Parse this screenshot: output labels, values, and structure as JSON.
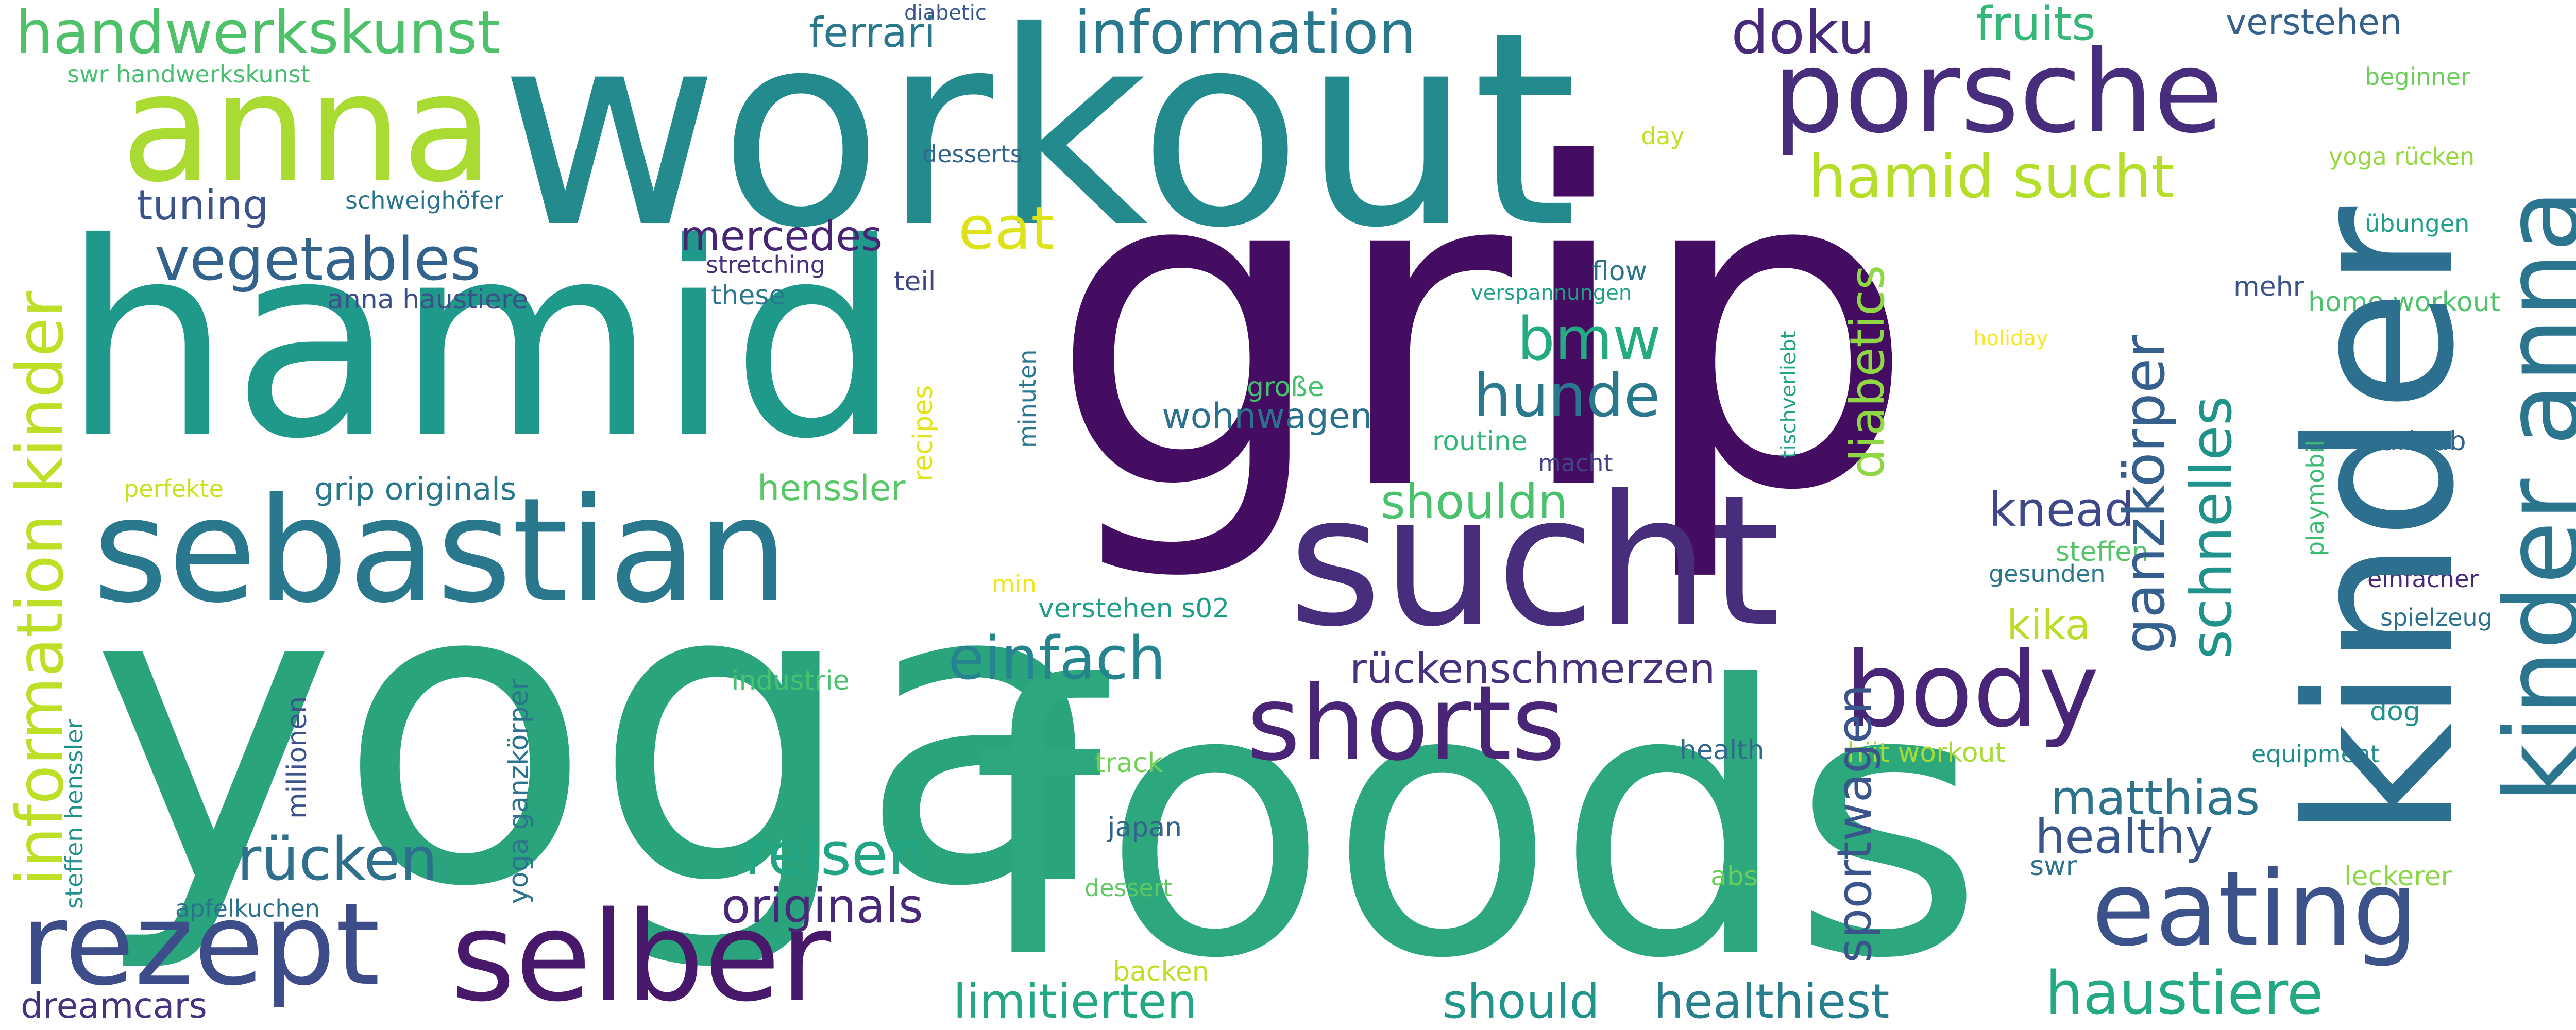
{
  "words": [
    {
      "text": "grip",
      "color": "#440d62"
    },
    {
      "text": "yoga",
      "color": "#2aa47d"
    },
    {
      "text": "foods",
      "color": "#2ca87c"
    },
    {
      "text": "workout",
      "color": "#238b8d"
    },
    {
      "text": "hamid",
      "color": "#1f9a8a"
    },
    {
      "text": "kinder",
      "color": "#2c6f8e"
    },
    {
      "text": "sucht",
      "color": "#472d7b"
    },
    {
      "text": "anna",
      "color": "#a9db33"
    },
    {
      "text": "sebastian",
      "color": "#2a788e"
    },
    {
      "text": "porsche",
      "color": "#472d7b"
    },
    {
      "text": "selber",
      "color": "#48196b"
    },
    {
      "text": "rezept",
      "color": "#3d4d8a"
    },
    {
      "text": "kinder anna",
      "color": "#2b758e"
    },
    {
      "text": "shorts",
      "color": "#482576"
    },
    {
      "text": "eating",
      "color": "#3b528b"
    },
    {
      "text": "body",
      "color": "#482576"
    },
    {
      "text": "handwerkskunst",
      "color": "#4fc16b"
    },
    {
      "text": "information",
      "color": "#29788e"
    },
    {
      "text": "hamid sucht",
      "color": "#b5de2b"
    },
    {
      "text": "vegetables",
      "color": "#33638d"
    },
    {
      "text": "reisen",
      "color": "#21a585"
    },
    {
      "text": "einfach",
      "color": "#25848e"
    },
    {
      "text": "rücken",
      "color": "#2e6f8e"
    },
    {
      "text": "originals",
      "color": "#482878"
    },
    {
      "text": "hunde",
      "color": "#2a788e"
    },
    {
      "text": "information kinder",
      "color": "#bddf26"
    },
    {
      "text": "eat",
      "color": "#dde318"
    },
    {
      "text": "bmw",
      "color": "#25ab82"
    },
    {
      "text": "haustiere",
      "color": "#23a983"
    },
    {
      "text": "doku",
      "color": "#472a7a"
    },
    {
      "text": "limitierten",
      "color": "#22a884"
    },
    {
      "text": "healthiest",
      "color": "#277f8e"
    },
    {
      "text": "should",
      "color": "#1f958b"
    },
    {
      "text": "schnelles",
      "color": "#20928c"
    },
    {
      "text": "ganzkörper",
      "color": "#355f8d"
    },
    {
      "text": "sportwagen",
      "color": "#3a548c"
    },
    {
      "text": "fruits",
      "color": "#35b779"
    },
    {
      "text": "shouldn",
      "color": "#4ac16d"
    },
    {
      "text": "knead",
      "color": "#3f4889"
    },
    {
      "text": "healthy",
      "color": "#39568c"
    },
    {
      "text": "matthias",
      "color": "#2c738e"
    },
    {
      "text": "mercedes",
      "color": "#482475"
    },
    {
      "text": "diabetics",
      "color": "#8fd744"
    },
    {
      "text": "ferrari",
      "color": "#2a788e"
    },
    {
      "text": "rückenschmerzen",
      "color": "#46327e"
    },
    {
      "text": "tuning",
      "color": "#3b528b"
    },
    {
      "text": "dreamcars",
      "color": "#46327e"
    },
    {
      "text": "henssler",
      "color": "#58c765"
    },
    {
      "text": "kika",
      "color": "#bade28"
    },
    {
      "text": "verstehen",
      "color": "#34608d"
    },
    {
      "text": "wohnwagen",
      "color": "#2c718e"
    },
    {
      "text": "grip originals",
      "color": "#2a788e"
    },
    {
      "text": "hiit workout",
      "color": "#a8db34"
    },
    {
      "text": "home workout",
      "color": "#4ec36b"
    },
    {
      "text": "swr handwerkskunst",
      "color": "#45bf70"
    },
    {
      "text": "anna haustiere",
      "color": "#3d4e8a"
    },
    {
      "text": "schweighöfer",
      "color": "#2c738e"
    },
    {
      "text": "desserts",
      "color": "#31668e"
    },
    {
      "text": "stretching",
      "color": "#46307e"
    },
    {
      "text": "these",
      "color": "#2a768e"
    },
    {
      "text": "teil",
      "color": "#404588"
    },
    {
      "text": "diabetic",
      "color": "#39568c"
    },
    {
      "text": "day",
      "color": "#c2df23"
    },
    {
      "text": "flow",
      "color": "#2c738e"
    },
    {
      "text": "verspannungen",
      "color": "#1fa088"
    },
    {
      "text": "große",
      "color": "#46c06f"
    },
    {
      "text": "routine",
      "color": "#35b779"
    },
    {
      "text": "macht",
      "color": "#404588"
    },
    {
      "text": "perfekte",
      "color": "#c8e020"
    },
    {
      "text": "min",
      "color": "#f1e51d"
    },
    {
      "text": "industrie",
      "color": "#4ac16d"
    },
    {
      "text": "verstehen s02",
      "color": "#1f9e89"
    },
    {
      "text": "track",
      "color": "#73d056"
    },
    {
      "text": "japan",
      "color": "#33638d"
    },
    {
      "text": "dessert",
      "color": "#5ec962"
    },
    {
      "text": "backen",
      "color": "#bddf26"
    },
    {
      "text": "apfelkuchen",
      "color": "#2c728e"
    },
    {
      "text": "abs",
      "color": "#6ccd5a"
    },
    {
      "text": "swr",
      "color": "#2c718e"
    },
    {
      "text": "health",
      "color": "#306a8e"
    },
    {
      "text": "equipment",
      "color": "#218e8d"
    },
    {
      "text": "dog",
      "color": "#21918c"
    },
    {
      "text": "leckerer",
      "color": "#8bd646"
    },
    {
      "text": "beginner",
      "color": "#6ccd5a"
    },
    {
      "text": "yoga rücken",
      "color": "#95d840"
    },
    {
      "text": "übungen",
      "color": "#1f9e89"
    },
    {
      "text": "mehr",
      "color": "#3b528b"
    },
    {
      "text": "holiday",
      "color": "#f8e621"
    },
    {
      "text": "urlaub",
      "color": "#33638d"
    },
    {
      "text": "steffen",
      "color": "#52c569"
    },
    {
      "text": "gesunden",
      "color": "#2a768e"
    },
    {
      "text": "einfacher",
      "color": "#482878"
    },
    {
      "text": "spielzeug",
      "color": "#2c718e"
    },
    {
      "text": "recipes",
      "color": "#e2e418"
    },
    {
      "text": "minuten",
      "color": "#2a788e"
    },
    {
      "text": "tischverliebt",
      "color": "#20a486"
    },
    {
      "text": "playmobil",
      "color": "#3dbc74"
    },
    {
      "text": "millionen",
      "color": "#3b528b"
    },
    {
      "text": "yoga ganzkörper",
      "color": "#2c738e"
    },
    {
      "text": "steffen henssler",
      "color": "#21918c"
    }
  ]
}
